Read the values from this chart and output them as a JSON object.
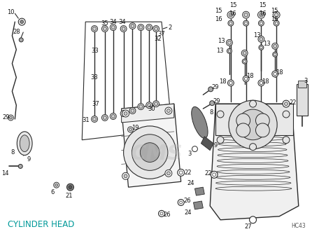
{
  "title": "CYLINDER HEAD",
  "title_fontsize": 8.5,
  "title_color": "#009999",
  "bg_color": "#ffffff",
  "lc": "#2a2a2a",
  "figsize": [
    4.46,
    3.34
  ],
  "dpi": 100,
  "watermark": "CMS",
  "wm_color": "#bbbbbb",
  "wm_alpha": 0.35,
  "wm_size": 22,
  "code": "HC43",
  "lfs": 6.0
}
